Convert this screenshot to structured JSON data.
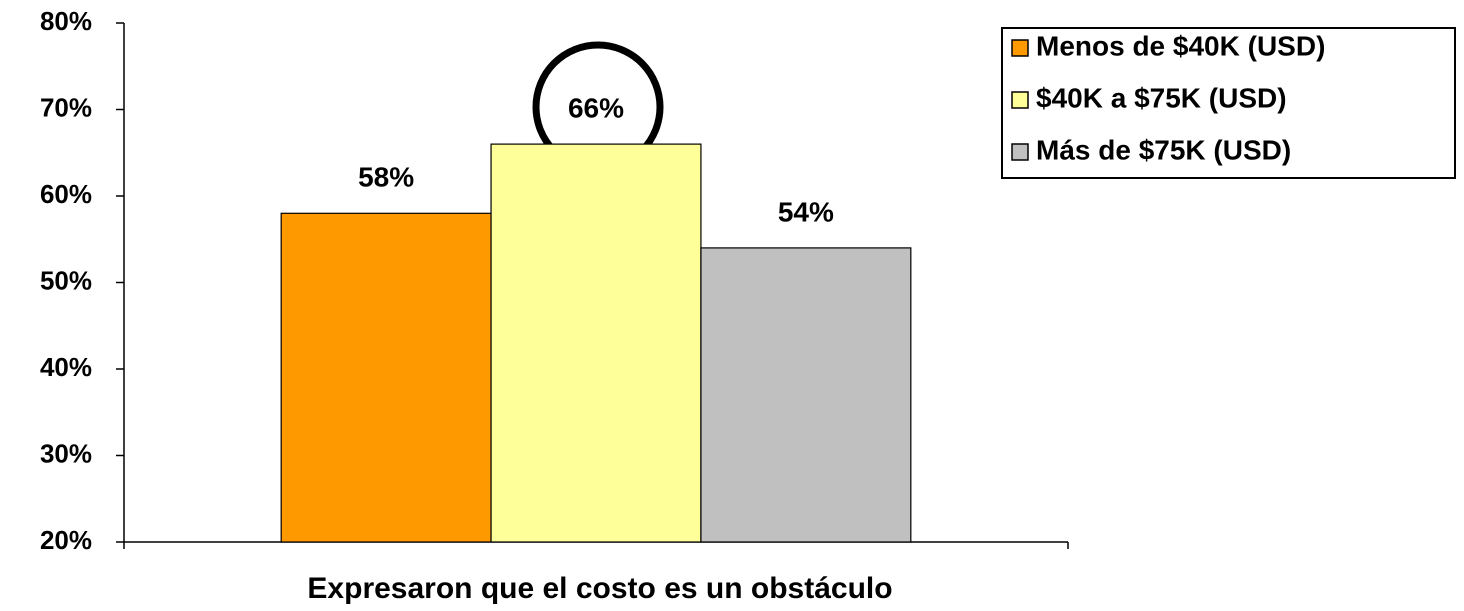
{
  "chart_data": {
    "type": "bar",
    "categories": [
      "Expresaron que el costo es un obstáculo"
    ],
    "series": [
      {
        "name": "Menos de $40K (USD)",
        "color": "#ff9900",
        "values": [
          58
        ],
        "value_labels": [
          "58%"
        ]
      },
      {
        "name": "$40K a $75K (USD)",
        "color": "#ffff99",
        "values": [
          66
        ],
        "value_labels": [
          "66%"
        ]
      },
      {
        "name": "Más de $75K (USD)",
        "color": "#c0c0c0",
        "values": [
          54
        ],
        "value_labels": [
          "54%"
        ]
      }
    ],
    "ylim": [
      20,
      80
    ],
    "yticks": [
      {
        "value": 20,
        "label": "20%"
      },
      {
        "value": 30,
        "label": "30%"
      },
      {
        "value": 40,
        "label": "40%"
      },
      {
        "value": 50,
        "label": "50%"
      },
      {
        "value": 60,
        "label": "60%"
      },
      {
        "value": 70,
        "label": "70%"
      },
      {
        "value": 80,
        "label": "80%"
      }
    ],
    "legend": "top-right"
  }
}
